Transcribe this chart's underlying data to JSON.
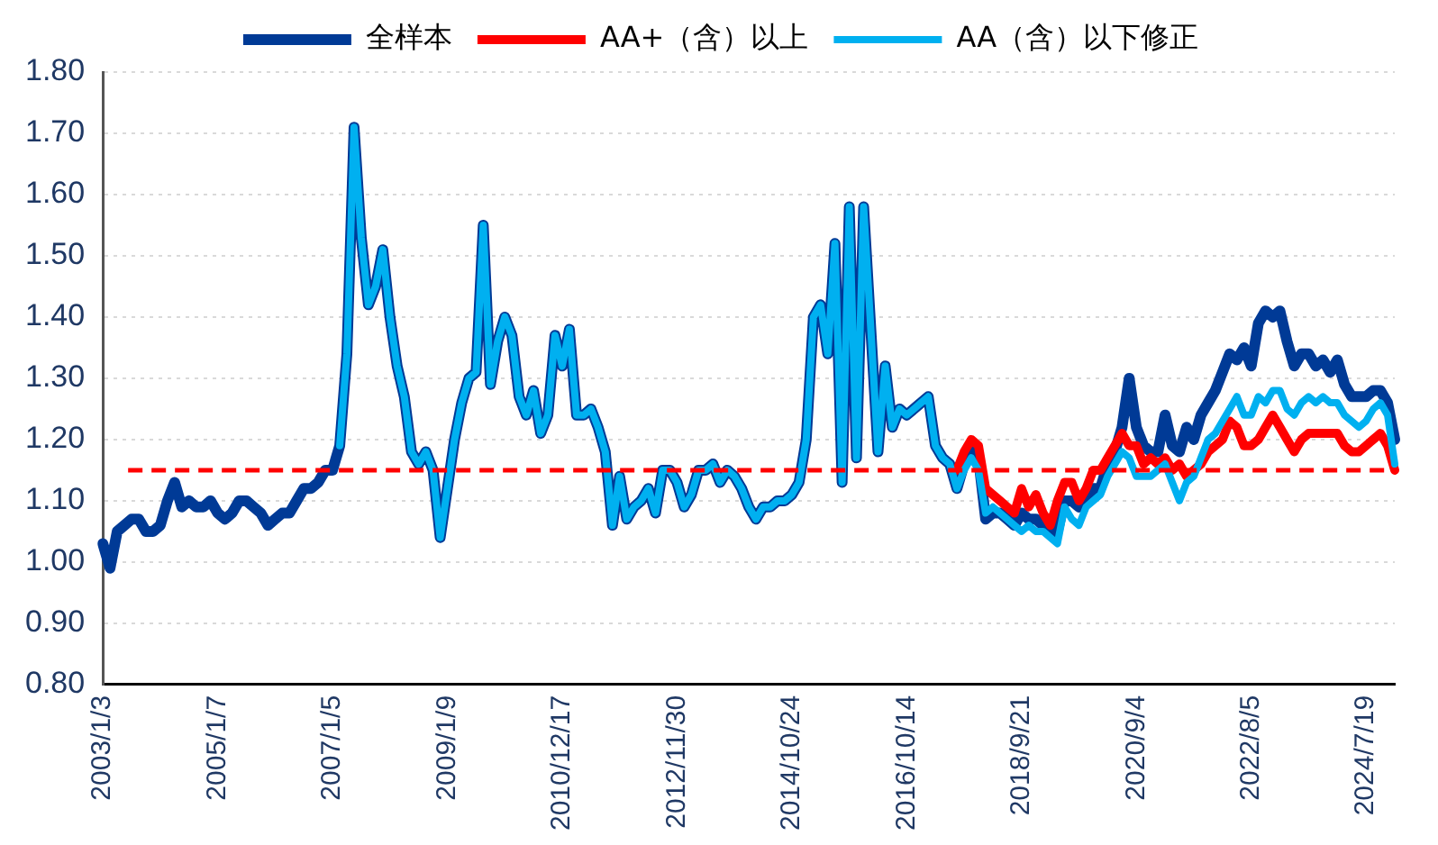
{
  "chart_data": {
    "type": "line",
    "categories": [
      "2003/1/3",
      null,
      null,
      null,
      null,
      null,
      null,
      null,
      null,
      null,
      null,
      null,
      null,
      null,
      null,
      null,
      "2005/1/7",
      null,
      null,
      null,
      null,
      null,
      null,
      null,
      null,
      null,
      null,
      null,
      null,
      null,
      null,
      null,
      "2007/1/5",
      null,
      null,
      null,
      null,
      null,
      null,
      null,
      null,
      null,
      null,
      null,
      null,
      null,
      null,
      null,
      "2009/1/9",
      null,
      null,
      null,
      null,
      null,
      null,
      null,
      null,
      null,
      null,
      null,
      null,
      null,
      null,
      null,
      "2010/12/17",
      null,
      null,
      null,
      null,
      null,
      null,
      null,
      null,
      null,
      null,
      null,
      null,
      null,
      null,
      null,
      "2012/11/30",
      null,
      null,
      null,
      null,
      null,
      null,
      null,
      null,
      null,
      null,
      null,
      null,
      null,
      null,
      null,
      "2014/10/24",
      null,
      null,
      null,
      null,
      null,
      null,
      null,
      null,
      null,
      null,
      null,
      null,
      null,
      null,
      null,
      "2016/10/14",
      null,
      null,
      null,
      null,
      null,
      null,
      null,
      null,
      null,
      null,
      null,
      null,
      null,
      null,
      null,
      "2018/9/21",
      null,
      null,
      null,
      null,
      null,
      null,
      null,
      null,
      null,
      null,
      null,
      null,
      null,
      null,
      null,
      "2020/9/4",
      null,
      null,
      null,
      null,
      null,
      null,
      null,
      null,
      null,
      null,
      null,
      null,
      null,
      null,
      null,
      "2022/8/5",
      null,
      null,
      null,
      null,
      null,
      null,
      null,
      null,
      null,
      null,
      null,
      null,
      null,
      null,
      null,
      "2024/7/19",
      null,
      null,
      null,
      null
    ],
    "series": [
      {
        "name": "全样本",
        "color": "#003a96",
        "values": [
          1.03,
          0.99,
          1.05,
          1.06,
          1.07,
          1.07,
          1.05,
          1.05,
          1.06,
          1.1,
          1.13,
          1.09,
          1.1,
          1.09,
          1.09,
          1.1,
          1.08,
          1.07,
          1.08,
          1.1,
          1.1,
          1.09,
          1.08,
          1.06,
          1.07,
          1.08,
          1.08,
          1.1,
          1.12,
          1.12,
          1.13,
          1.15,
          1.15,
          1.19,
          1.34,
          1.71,
          1.53,
          1.42,
          1.45,
          1.51,
          1.4,
          1.32,
          1.27,
          1.18,
          1.16,
          1.18,
          1.15,
          1.04,
          1.12,
          1.2,
          1.26,
          1.3,
          1.31,
          1.55,
          1.29,
          1.36,
          1.4,
          1.37,
          1.27,
          1.24,
          1.28,
          1.21,
          1.24,
          1.37,
          1.32,
          1.38,
          1.24,
          1.24,
          1.25,
          1.22,
          1.18,
          1.06,
          1.14,
          1.07,
          1.09,
          1.1,
          1.12,
          1.08,
          1.15,
          1.15,
          1.13,
          1.09,
          1.11,
          1.15,
          1.15,
          1.16,
          1.13,
          1.15,
          1.14,
          1.12,
          1.09,
          1.07,
          1.09,
          1.09,
          1.1,
          1.1,
          1.11,
          1.13,
          1.2,
          1.4,
          1.42,
          1.34,
          1.52,
          1.13,
          1.58,
          1.17,
          1.58,
          1.38,
          1.18,
          1.32,
          1.22,
          1.25,
          1.24,
          1.25,
          1.26,
          1.27,
          1.19,
          1.17,
          1.16,
          1.12,
          1.16,
          1.19,
          1.17,
          1.07,
          1.08,
          1.08,
          1.07,
          1.06,
          1.08,
          1.07,
          1.07,
          1.06,
          1.05,
          1.05,
          1.1,
          1.1,
          1.09,
          1.1,
          1.12,
          1.12,
          1.16,
          1.18,
          1.22,
          1.3,
          1.22,
          1.19,
          1.18,
          1.18,
          1.24,
          1.19,
          1.18,
          1.22,
          1.2,
          1.24,
          1.26,
          1.28,
          1.31,
          1.34,
          1.33,
          1.35,
          1.32,
          1.39,
          1.41,
          1.4,
          1.41,
          1.36,
          1.32,
          1.34,
          1.34,
          1.32,
          1.33,
          1.31,
          1.33,
          1.29,
          1.27,
          1.27,
          1.27,
          1.28,
          1.28,
          1.26,
          1.2
        ]
      },
      {
        "name": "AA+（含）以上",
        "color": "#ff0000",
        "values": [
          null,
          null,
          null,
          null,
          null,
          null,
          null,
          null,
          null,
          null,
          null,
          null,
          null,
          null,
          null,
          null,
          null,
          null,
          null,
          null,
          null,
          null,
          null,
          null,
          null,
          null,
          null,
          null,
          null,
          null,
          null,
          null,
          null,
          null,
          null,
          null,
          null,
          null,
          null,
          null,
          null,
          null,
          null,
          null,
          null,
          null,
          null,
          null,
          null,
          null,
          null,
          null,
          null,
          null,
          null,
          null,
          null,
          null,
          null,
          null,
          null,
          null,
          null,
          null,
          null,
          null,
          null,
          null,
          null,
          null,
          null,
          null,
          null,
          null,
          null,
          null,
          null,
          null,
          null,
          null,
          null,
          null,
          null,
          null,
          null,
          null,
          null,
          null,
          null,
          null,
          null,
          null,
          null,
          null,
          null,
          null,
          null,
          null,
          null,
          null,
          null,
          null,
          null,
          null,
          null,
          null,
          null,
          null,
          null,
          null,
          null,
          null,
          null,
          null,
          null,
          null,
          null,
          null,
          null,
          1.15,
          1.18,
          1.2,
          1.19,
          1.12,
          1.11,
          1.1,
          1.09,
          1.08,
          1.12,
          1.09,
          1.11,
          1.08,
          1.06,
          1.1,
          1.13,
          1.13,
          1.1,
          1.12,
          1.15,
          1.15,
          1.17,
          1.19,
          1.21,
          1.19,
          1.19,
          1.16,
          1.17,
          1.16,
          1.17,
          1.15,
          1.16,
          1.14,
          1.15,
          1.16,
          1.18,
          1.19,
          1.2,
          1.23,
          1.22,
          1.19,
          1.19,
          1.2,
          1.22,
          1.24,
          1.22,
          1.2,
          1.18,
          1.2,
          1.21,
          1.21,
          1.21,
          1.21,
          1.21,
          1.19,
          1.18,
          1.18,
          1.19,
          1.2,
          1.21,
          1.19,
          1.15
        ]
      },
      {
        "name": "AA（含）以下修正",
        "color": "#00b0f0",
        "values": [
          null,
          null,
          null,
          null,
          null,
          null,
          null,
          null,
          null,
          null,
          null,
          null,
          null,
          null,
          null,
          null,
          null,
          null,
          null,
          null,
          null,
          null,
          null,
          null,
          null,
          null,
          null,
          null,
          null,
          null,
          null,
          null,
          null,
          1.19,
          1.34,
          1.71,
          1.53,
          1.42,
          1.45,
          1.51,
          1.4,
          1.32,
          1.27,
          1.18,
          1.16,
          1.18,
          1.15,
          1.04,
          1.12,
          1.2,
          1.26,
          1.3,
          1.31,
          1.55,
          1.29,
          1.36,
          1.4,
          1.37,
          1.27,
          1.24,
          1.28,
          1.21,
          1.24,
          1.37,
          1.32,
          1.38,
          1.24,
          1.24,
          1.25,
          1.22,
          1.18,
          1.06,
          1.14,
          1.07,
          1.09,
          1.1,
          1.12,
          1.08,
          1.15,
          1.15,
          1.13,
          1.09,
          1.11,
          1.15,
          1.15,
          1.16,
          1.13,
          1.15,
          1.14,
          1.12,
          1.09,
          1.07,
          1.09,
          1.09,
          1.1,
          1.1,
          1.11,
          1.13,
          1.2,
          1.4,
          1.42,
          1.34,
          1.52,
          1.13,
          1.58,
          1.17,
          1.58,
          1.38,
          1.18,
          1.32,
          1.22,
          1.25,
          1.24,
          1.25,
          1.26,
          1.27,
          1.19,
          1.17,
          1.16,
          1.12,
          1.15,
          1.17,
          1.15,
          1.08,
          1.09,
          1.08,
          1.07,
          1.06,
          1.05,
          1.06,
          1.05,
          1.05,
          1.04,
          1.03,
          1.09,
          1.07,
          1.06,
          1.09,
          1.1,
          1.11,
          1.14,
          1.16,
          1.18,
          1.17,
          1.14,
          1.14,
          1.14,
          1.15,
          1.16,
          1.13,
          1.1,
          1.13,
          1.14,
          1.17,
          1.2,
          1.21,
          1.23,
          1.25,
          1.27,
          1.24,
          1.24,
          1.27,
          1.26,
          1.28,
          1.28,
          1.25,
          1.24,
          1.26,
          1.27,
          1.26,
          1.27,
          1.26,
          1.26,
          1.24,
          1.23,
          1.22,
          1.23,
          1.25,
          1.26,
          1.24,
          1.16
        ]
      }
    ],
    "ylim": [
      0.8,
      1.8
    ],
    "yticks": [
      {
        "value": 0.8,
        "label": "0.80"
      },
      {
        "value": 0.9,
        "label": "0.90"
      },
      {
        "value": 1.0,
        "label": "1.00"
      },
      {
        "value": 1.1,
        "label": "1.10"
      },
      {
        "value": 1.2,
        "label": "1.20"
      },
      {
        "value": 1.3,
        "label": "1.30"
      },
      {
        "value": 1.4,
        "label": "1.40"
      },
      {
        "value": 1.5,
        "label": "1.50"
      },
      {
        "value": 1.6,
        "label": "1.60"
      },
      {
        "value": 1.7,
        "label": "1.70"
      },
      {
        "value": 1.8,
        "label": "1.80"
      }
    ],
    "ref_lines": [
      {
        "axis": "y",
        "value": 1.15,
        "color": "#ff0000",
        "line_style": "dashed"
      }
    ],
    "grid": "y",
    "legend": "top",
    "marker": "none",
    "line_style": "solid"
  }
}
